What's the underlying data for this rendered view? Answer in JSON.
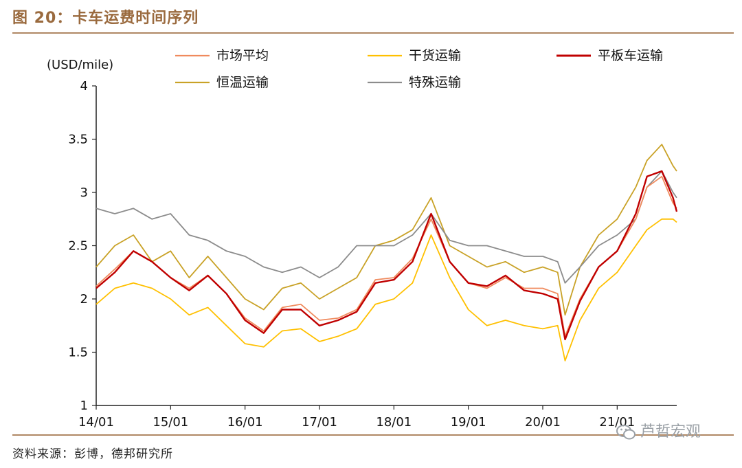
{
  "figure": {
    "title": "图 20：卡车运费时间序列",
    "source": "资料来源：彭博，德邦研究所",
    "watermark": "芦哲宏观"
  },
  "chart_data": {
    "type": "line",
    "ylabel": "(USD/mile)",
    "ylim": [
      1,
      4
    ],
    "yticks": [
      "1",
      "1.5",
      "2",
      "2.5",
      "3",
      "3.5",
      "4"
    ],
    "xticks": [
      "14/01",
      "15/01",
      "16/01",
      "17/01",
      "18/01",
      "19/01",
      "20/01",
      "21/01"
    ],
    "xrange_years": [
      2014.0,
      2021.8
    ],
    "x": [
      2014.0,
      2014.25,
      2014.5,
      2014.75,
      2015.0,
      2015.25,
      2015.5,
      2015.75,
      2016.0,
      2016.25,
      2016.5,
      2016.75,
      2017.0,
      2017.25,
      2017.5,
      2017.75,
      2018.0,
      2018.25,
      2018.5,
      2018.75,
      2019.0,
      2019.25,
      2019.5,
      2019.75,
      2020.0,
      2020.2,
      2020.3,
      2020.5,
      2020.75,
      2021.0,
      2021.25,
      2021.4,
      2021.6,
      2021.75,
      2021.8
    ],
    "series": [
      {
        "name": "市场平均",
        "color": "#f08a5d",
        "values": [
          2.12,
          2.28,
          2.45,
          2.35,
          2.2,
          2.1,
          2.22,
          2.05,
          1.82,
          1.7,
          1.92,
          1.95,
          1.8,
          1.82,
          1.9,
          2.18,
          2.2,
          2.38,
          2.75,
          2.35,
          2.15,
          2.1,
          2.2,
          2.1,
          2.1,
          2.05,
          1.65,
          2.0,
          2.3,
          2.45,
          2.75,
          3.05,
          3.15,
          2.9,
          2.85
        ]
      },
      {
        "name": "干货运输",
        "color": "#ffc000",
        "values": [
          1.95,
          2.1,
          2.15,
          2.1,
          2.0,
          1.85,
          1.92,
          1.75,
          1.58,
          1.55,
          1.7,
          1.72,
          1.6,
          1.65,
          1.72,
          1.95,
          2.0,
          2.15,
          2.6,
          2.2,
          1.9,
          1.75,
          1.8,
          1.75,
          1.72,
          1.75,
          1.42,
          1.8,
          2.1,
          2.25,
          2.5,
          2.65,
          2.75,
          2.75,
          2.72
        ]
      },
      {
        "name": "平板车运输",
        "color": "#c00000",
        "values": [
          2.1,
          2.25,
          2.45,
          2.35,
          2.2,
          2.08,
          2.22,
          2.05,
          1.8,
          1.68,
          1.9,
          1.9,
          1.75,
          1.8,
          1.88,
          2.15,
          2.18,
          2.35,
          2.8,
          2.35,
          2.15,
          2.12,
          2.22,
          2.08,
          2.05,
          2.0,
          1.62,
          1.98,
          2.3,
          2.45,
          2.8,
          3.15,
          3.2,
          2.95,
          2.82
        ]
      },
      {
        "name": "恒温运输",
        "color": "#c9a227",
        "values": [
          2.3,
          2.5,
          2.6,
          2.35,
          2.45,
          2.2,
          2.4,
          2.2,
          2.0,
          1.9,
          2.1,
          2.15,
          2.0,
          2.1,
          2.2,
          2.5,
          2.55,
          2.65,
          2.95,
          2.5,
          2.4,
          2.3,
          2.35,
          2.25,
          2.3,
          2.25,
          1.85,
          2.3,
          2.6,
          2.75,
          3.05,
          3.3,
          3.45,
          3.25,
          3.2
        ]
      },
      {
        "name": "特殊运输",
        "color": "#8c8c8c",
        "values": [
          2.85,
          2.8,
          2.85,
          2.75,
          2.8,
          2.6,
          2.55,
          2.45,
          2.4,
          2.3,
          2.25,
          2.3,
          2.2,
          2.3,
          2.5,
          2.5,
          2.5,
          2.6,
          2.8,
          2.55,
          2.5,
          2.5,
          2.45,
          2.4,
          2.4,
          2.35,
          2.15,
          2.3,
          2.5,
          2.6,
          2.75,
          3.05,
          3.2,
          3.0,
          2.95
        ]
      }
    ]
  }
}
